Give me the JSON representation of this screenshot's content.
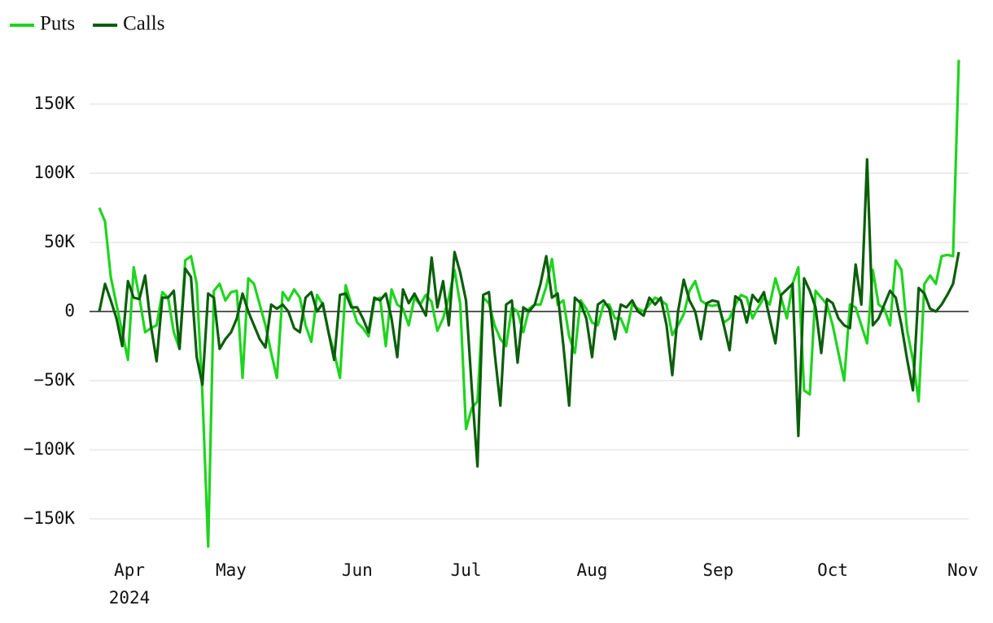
{
  "chart_data": {
    "type": "line",
    "categories": [
      null,
      "Apr 2024",
      null,
      null,
      null,
      null,
      null,
      null,
      null,
      null,
      null,
      null,
      null,
      null,
      null,
      null,
      null,
      null,
      null,
      null,
      null,
      null,
      null,
      "May",
      null,
      null,
      null,
      null,
      null,
      null,
      null,
      null,
      null,
      null,
      null,
      null,
      null,
      null,
      null,
      null,
      null,
      null,
      null,
      null,
      null,
      "Jun",
      null,
      null,
      null,
      null,
      null,
      null,
      null,
      null,
      null,
      null,
      null,
      null,
      null,
      null,
      null,
      null,
      null,
      null,
      "Jul",
      null,
      null,
      null,
      null,
      null,
      null,
      null,
      null,
      null,
      null,
      null,
      null,
      null,
      null,
      null,
      null,
      null,
      null,
      null,
      null,
      null,
      "Aug",
      null,
      null,
      null,
      null,
      null,
      null,
      null,
      null,
      null,
      null,
      null,
      null,
      null,
      null,
      null,
      null,
      null,
      null,
      null,
      null,
      null,
      "Sep",
      null,
      null,
      null,
      null,
      null,
      null,
      null,
      null,
      null,
      null,
      null,
      null,
      null,
      null,
      null,
      null,
      null,
      null,
      null,
      "Oct",
      null,
      null,
      null,
      null,
      null,
      null,
      null,
      null,
      null,
      null,
      null,
      null,
      null,
      null,
      null,
      null,
      null,
      null,
      null,
      null,
      null,
      null,
      "Nov"
    ],
    "series": [
      {
        "name": "Puts",
        "color": "#1fd41f",
        "values": [
          75000,
          65000,
          25000,
          5000,
          -15000,
          -35000,
          32000,
          10000,
          -15000,
          -12000,
          -10000,
          14000,
          10000,
          -15000,
          -27000,
          37000,
          40000,
          20000,
          -60000,
          -170000,
          15000,
          20000,
          8000,
          14000,
          15000,
          -48000,
          24000,
          20000,
          5000,
          -10000,
          -30000,
          -48000,
          14000,
          8000,
          16000,
          10000,
          -10000,
          -22000,
          12000,
          5000,
          -15000,
          -30000,
          -48000,
          19000,
          5000,
          -8000,
          -12000,
          -18000,
          8000,
          10000,
          -25000,
          16000,
          5000,
          2000,
          -10000,
          10000,
          5000,
          12000,
          7000,
          -14000,
          -5000,
          10000,
          30000,
          5000,
          -85000,
          -70000,
          -65000,
          10000,
          6000,
          -10000,
          -20000,
          -25000,
          3000,
          0,
          -15000,
          2000,
          5000,
          5000,
          18000,
          38000,
          5000,
          8000,
          -18000,
          -30000,
          8000,
          2000,
          -8000,
          -10000,
          5000,
          5000,
          -5000,
          -5000,
          -15000,
          5000,
          2000,
          0,
          5000,
          10000,
          8000,
          5000,
          -17000,
          -10000,
          -2000,
          15000,
          22000,
          8000,
          5000,
          4000,
          5000,
          -8000,
          -5000,
          5000,
          12000,
          10000,
          -5000,
          3000,
          10000,
          5000,
          24000,
          10000,
          -5000,
          20000,
          32000,
          -57000,
          -60000,
          15000,
          10000,
          5000,
          -10000,
          -30000,
          -50000,
          5000,
          3000,
          -10000,
          -23000,
          30000,
          5000,
          2000,
          -10000,
          37000,
          30000,
          -14000,
          -35000,
          -65000,
          20000,
          26000,
          20000,
          40000,
          41000,
          40000,
          182000,
          null
        ]
      },
      {
        "name": "Calls",
        "color": "#0b5e0b",
        "values": [
          0,
          20000,
          8000,
          -5000,
          -25000,
          22000,
          10000,
          9000,
          26000,
          -10000,
          -36000,
          10000,
          10000,
          15000,
          -27000,
          31000,
          25000,
          -33000,
          -53000,
          13000,
          10000,
          -27000,
          -20000,
          -15000,
          -5000,
          13000,
          0,
          -10000,
          -20000,
          -26000,
          5000,
          2000,
          5000,
          0,
          -12000,
          -15000,
          10000,
          14000,
          0,
          6000,
          -15000,
          -35000,
          12000,
          13000,
          3000,
          3000,
          -5000,
          -15000,
          10000,
          8000,
          13000,
          -5000,
          -33000,
          16000,
          6000,
          13000,
          5000,
          -3000,
          39000,
          3000,
          22000,
          -10000,
          43000,
          28000,
          8000,
          -55000,
          -112000,
          12000,
          14000,
          -30000,
          -68000,
          5000,
          8000,
          -37000,
          3000,
          0,
          5000,
          20000,
          40000,
          10000,
          13000,
          -25000,
          -68000,
          10000,
          6000,
          -5000,
          -33000,
          5000,
          8000,
          2000,
          -20000,
          5000,
          3000,
          8000,
          0,
          -3000,
          10000,
          5000,
          10000,
          -10000,
          -46000,
          0,
          23000,
          8000,
          0,
          -20000,
          6000,
          8000,
          7000,
          -10000,
          -28000,
          11000,
          8000,
          -8000,
          12000,
          7000,
          14000,
          -5000,
          -23000,
          12000,
          16000,
          20000,
          -90000,
          24000,
          15000,
          3000,
          -30000,
          9000,
          6000,
          -5000,
          -10000,
          -12000,
          34000,
          5000,
          110000,
          -10000,
          -5000,
          5000,
          15000,
          10000,
          -10000,
          -35000,
          -57000,
          17000,
          13000,
          2000,
          0,
          5000,
          12000,
          20000,
          43000,
          null
        ]
      }
    ],
    "ylim": [
      -175000,
      190000
    ],
    "yticks": [
      {
        "value": -150000,
        "label": "−150K"
      },
      {
        "value": -100000,
        "label": "−100K"
      },
      {
        "value": -50000,
        "label": "−50K"
      },
      0,
      {
        "value": 50000,
        "label": "50K"
      },
      {
        "value": 100000,
        "label": "100K"
      },
      {
        "value": 150000,
        "label": "150K"
      }
    ],
    "grid": true,
    "legend": "top-left"
  }
}
